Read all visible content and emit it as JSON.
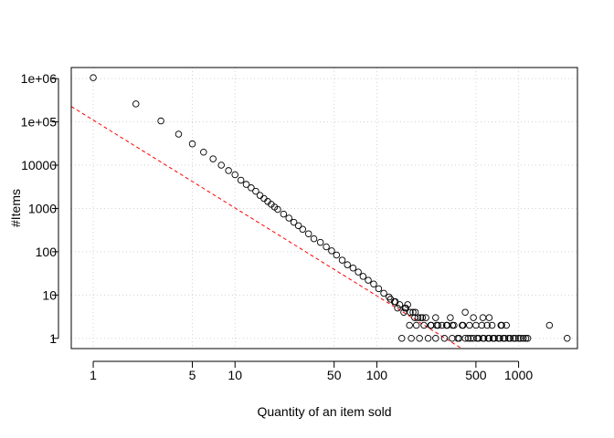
{
  "chart_data": {
    "type": "scatter",
    "title": "",
    "xlabel": "Quantity of an item sold",
    "ylabel": "#Items",
    "xscale": "log",
    "yscale": "log",
    "xlim": [
      0.7,
      2600
    ],
    "ylim": [
      0.58,
      1800000
    ],
    "x_ticks": [
      1,
      5,
      10,
      50,
      100,
      500,
      1000
    ],
    "x_tick_labels": [
      "1",
      "5",
      "10",
      "50",
      "100",
      "500",
      "1000"
    ],
    "y_ticks": [
      1,
      10,
      100,
      1000,
      10000,
      100000,
      1000000
    ],
    "y_tick_labels": [
      "1",
      "10",
      "100",
      "1000",
      "10000",
      "1e+05",
      "1e+06"
    ],
    "grid": true,
    "marker": "open-circle",
    "points": {
      "x": [
        1,
        2,
        3,
        4,
        5,
        6,
        7,
        8,
        9,
        10,
        11,
        12,
        13,
        14,
        15,
        16,
        17,
        18,
        19,
        20,
        22,
        24,
        26,
        28,
        30,
        33,
        36,
        40,
        44,
        48,
        52,
        57,
        62,
        68,
        74,
        80,
        87,
        95,
        103,
        112,
        122,
        133,
        145,
        158,
        172,
        187,
        204,
        222,
        242,
        264,
        288,
        314,
        342,
        372,
        405,
        441,
        480,
        523,
        569,
        620,
        675,
        735,
        800,
        871,
        949,
        1033,
        1125,
        1650,
        2200,
        150,
        175,
        200,
        230,
        260,
        300,
        340,
        380,
        420,
        460,
        510,
        560,
        610,
        660,
        720,
        780,
        850,
        920,
        1000,
        1080,
        1160,
        170,
        190,
        215,
        240,
        270,
        310,
        350,
        400,
        450,
        500,
        550,
        600,
        650,
        750,
        820,
        210,
        260,
        330,
        420,
        480,
        560,
        620,
        760,
        140,
        155,
        165,
        180,
        195,
        125,
        135,
        160,
        185
      ],
      "y": [
        1050000,
        260000,
        105000,
        52000,
        31000,
        20000,
        14000,
        10000,
        7500,
        6000,
        4500,
        3600,
        3000,
        2500,
        2000,
        1700,
        1450,
        1250,
        1080,
        950,
        740,
        600,
        480,
        400,
        330,
        260,
        200,
        165,
        130,
        105,
        84,
        64,
        50,
        42,
        34,
        27,
        22,
        18,
        14,
        11,
        9,
        7,
        6,
        5,
        4,
        4,
        3,
        3,
        2,
        2,
        2,
        2,
        2,
        1,
        2,
        1,
        1,
        1,
        1,
        1,
        1,
        1,
        1,
        1,
        1,
        1,
        1,
        2,
        1,
        1,
        1,
        1,
        1,
        1,
        1,
        1,
        1,
        1,
        1,
        1,
        1,
        1,
        1,
        1,
        1,
        1,
        1,
        1,
        1,
        1,
        2,
        2,
        2,
        2,
        2,
        2,
        2,
        2,
        2,
        2,
        2,
        2,
        2,
        2,
        2,
        3,
        3,
        3,
        4,
        3,
        3,
        3,
        2,
        5,
        4,
        6,
        4,
        3,
        8,
        7,
        5,
        3
      ]
    },
    "fit_line": {
      "style": "dashed",
      "color": "#ff0000",
      "slope": -2.03,
      "intercept_at_x1": 110000
    }
  }
}
